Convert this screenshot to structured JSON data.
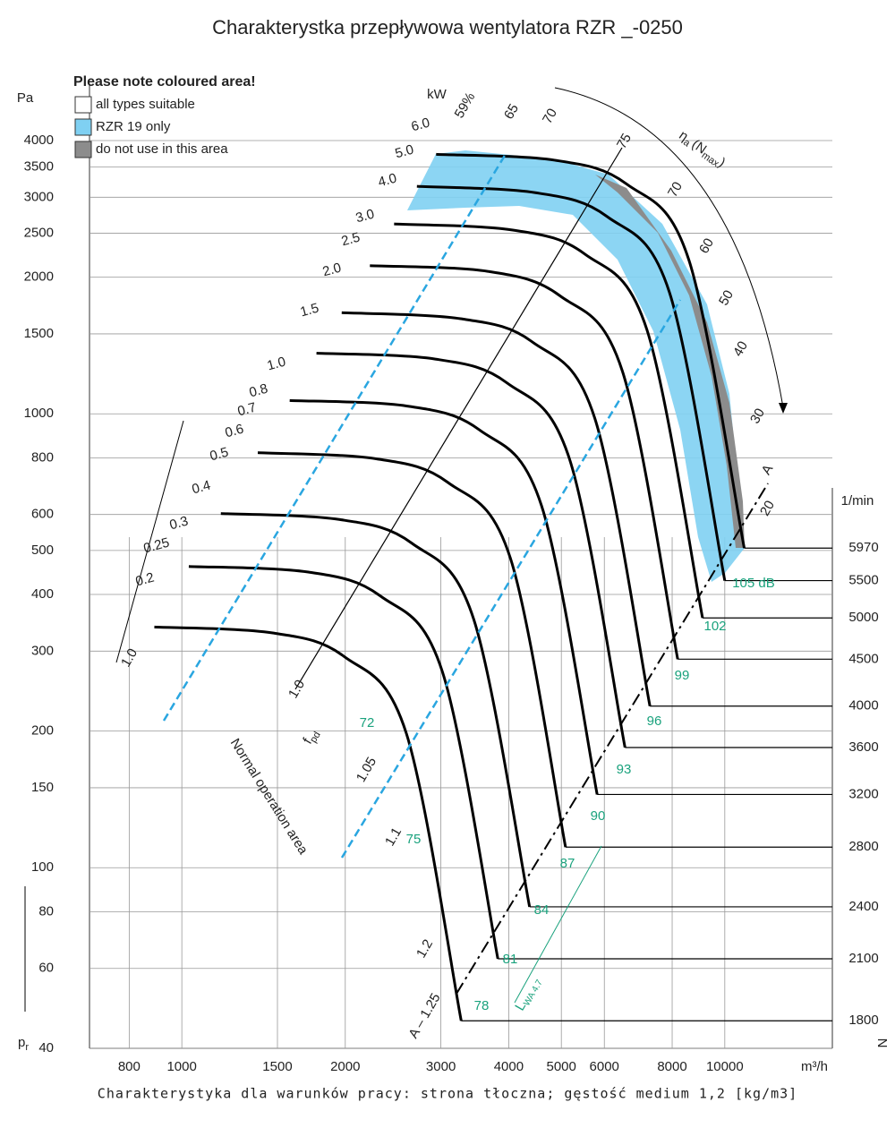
{
  "chart_data": {
    "type": "line",
    "title": "Charakterystka przepływowa wentylatora RZR _-0250",
    "footnote": "Charakterystyka dla warunków pracy: strona tłoczna; gęstość medium 1,2 [kg/m3]",
    "x_label": "m³/h",
    "y_label": "Pa",
    "pressure_symbol": "p",
    "pressure_subscript": "r",
    "rpm_unit": "1/min",
    "speed_symbol": "N",
    "power_unit": "kW",
    "legend": {
      "title": "Please note coloured area!",
      "items": [
        "all types suitable",
        "RZR 19 only",
        "do not use in this area"
      ],
      "colors": [
        "#ffffff",
        "#7fd0f2",
        "#8c8c8c"
      ]
    },
    "efficiency_axis": [
      "η",
      "a",
      "(N",
      "max",
      ")"
    ],
    "pd_symbol": [
      "f",
      "pd"
    ],
    "operation_label": "Normal operation area",
    "sound_symbol": [
      "L",
      "WA 4.7"
    ],
    "power_labels": [
      "6.0",
      "5.0",
      "4.0",
      "3.0",
      "2.5",
      "2.0",
      "1.5",
      "1.0",
      "0.8",
      "0.7",
      "0.6",
      "0.5",
      "0.4",
      "0.3",
      "0.25",
      "0.2"
    ],
    "efficiency_labels": [
      "59%",
      "65",
      "70",
      "75",
      "70",
      "60",
      "50",
      "40",
      "30",
      "20"
    ],
    "sound_labels": [
      "72",
      "75",
      "78",
      "81",
      "84",
      "87",
      "90",
      "93",
      "96",
      "99",
      "102",
      "105 dB"
    ],
    "dynamic_labels": [
      "1.0",
      "1.0",
      "1.05",
      "1.1",
      "1.2",
      "A – 1.25",
      "A"
    ],
    "log_x": true,
    "log_y": true,
    "grid": true,
    "xlim": [
      676,
      15780
    ],
    "ylim": [
      40,
      5300
    ],
    "xticks": [
      800,
      1000,
      1500,
      2000,
      3000,
      4000,
      5000,
      6000,
      8000,
      10000
    ],
    "yticks": [
      40,
      60,
      80,
      100,
      150,
      200,
      300,
      400,
      500,
      600,
      800,
      1000,
      1500,
      2000,
      2500,
      3000,
      3500,
      4000
    ],
    "series": [
      {
        "name": "5970",
        "color": "#000000",
        "x": [
          2940,
          4860,
          6590,
          8590,
          10860
        ],
        "values": [
          3730,
          3620,
          3210,
          2180,
          506
        ]
      },
      {
        "name": "5500",
        "color": "#000000",
        "x": [
          2710,
          4480,
          6070,
          7910,
          10000
        ],
        "values": [
          3170,
          3070,
          2720,
          1850,
          429
        ]
      },
      {
        "name": "5000",
        "color": "#000000",
        "x": [
          2460,
          4070,
          5520,
          7190,
          9100
        ],
        "values": [
          2620,
          2540,
          2250,
          1530,
          355
        ]
      },
      {
        "name": "4500",
        "color": "#000000",
        "x": [
          2220,
          3660,
          4970,
          6480,
          8190
        ],
        "values": [
          2120,
          2060,
          1820,
          1240,
          288
        ]
      },
      {
        "name": "4000",
        "color": "#000000",
        "x": [
          1970,
          3260,
          4420,
          5760,
          7280
        ],
        "values": [
          1670,
          1620,
          1440,
          979,
          227
        ]
      },
      {
        "name": "3600",
        "color": "#000000",
        "x": [
          1770,
          2930,
          3970,
          5180,
          6550
        ],
        "values": [
          1360,
          1320,
          1170,
          793,
          184
        ]
      },
      {
        "name": "3200",
        "color": "#000000",
        "x": [
          1580,
          2600,
          3530,
          4600,
          5820
        ],
        "values": [
          1070,
          1040,
          922,
          626,
          145
        ]
      },
      {
        "name": "2800",
        "color": "#000000",
        "x": [
          1380,
          2280,
          3090,
          4030,
          5090
        ],
        "values": [
          821,
          796,
          706,
          480,
          111
        ]
      },
      {
        "name": "2400",
        "color": "#000000",
        "x": [
          1180,
          1950,
          2650,
          3450,
          4370
        ],
        "values": [
          603,
          585,
          519,
          352,
          82
        ]
      },
      {
        "name": "2100",
        "color": "#000000",
        "x": [
          1030,
          1710,
          2320,
          3020,
          3820
        ],
        "values": [
          461,
          448,
          397,
          270,
          63
        ]
      },
      {
        "name": "1800",
        "color": "#000000",
        "x": [
          890,
          1470,
          1990,
          2590,
          3270
        ],
        "values": [
          339,
          329,
          292,
          198,
          46
        ]
      }
    ]
  }
}
